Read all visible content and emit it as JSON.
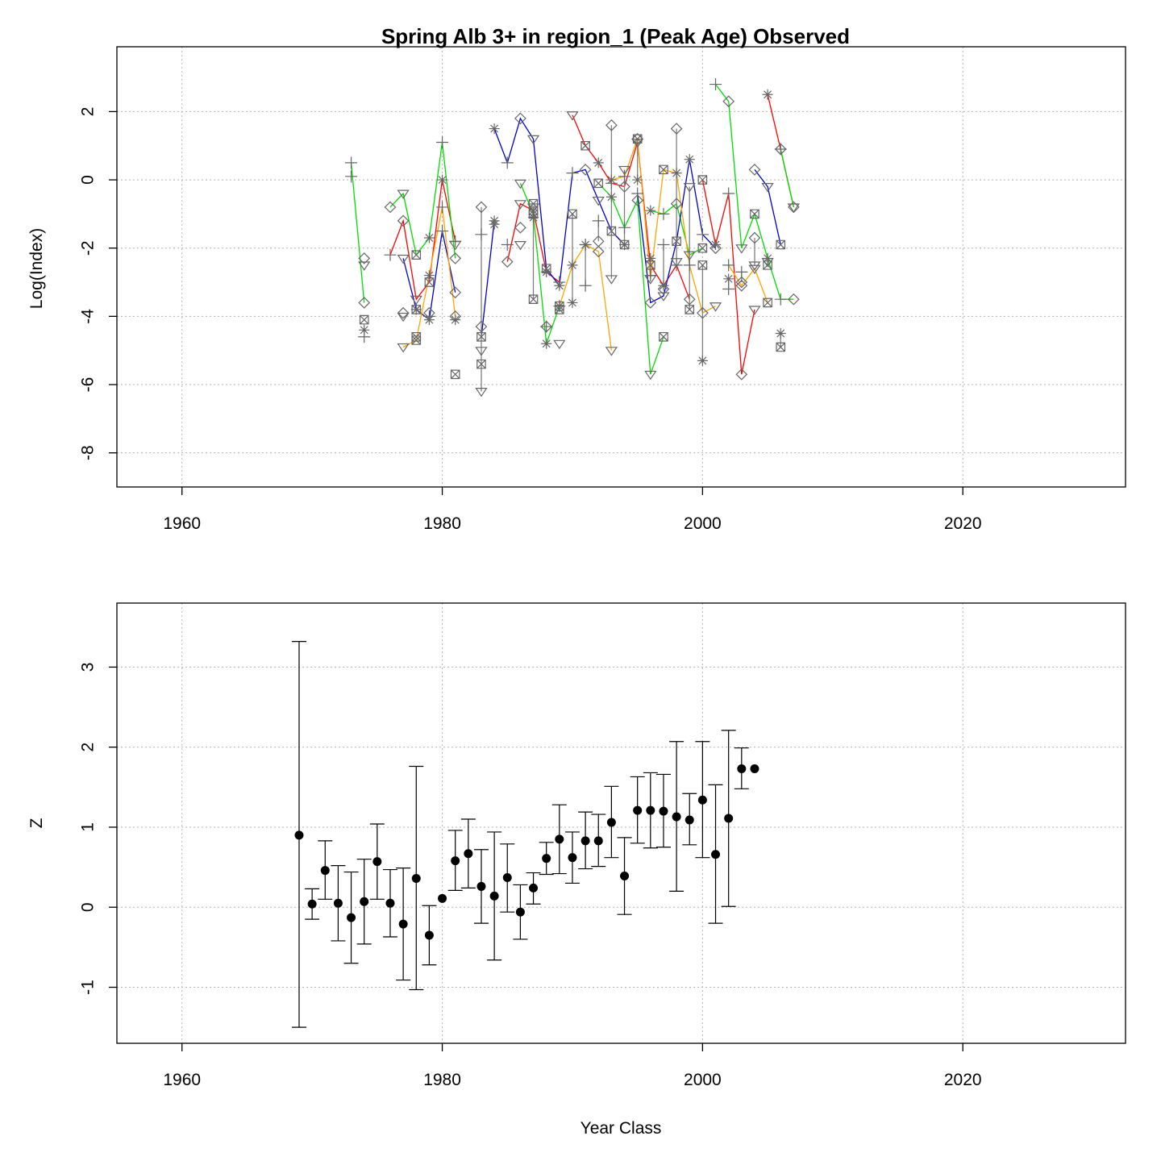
{
  "colors": {
    "lines": [
      "#ff0000",
      "#00dd00",
      "#0000cc",
      "#ffa500",
      "#808080"
    ],
    "marker": "#666666",
    "points": "#000000",
    "grid": "#b3b3b3"
  },
  "chart_data": [
    {
      "type": "line",
      "title": "Spring Alb 3+ in region_1 (Peak Age) Observed",
      "xlabel": "",
      "ylabel": "Log(Index)",
      "xlim": [
        1955,
        2032.5
      ],
      "ylim": [
        -9,
        3.9
      ],
      "xticks": [
        1960,
        1980,
        2000,
        2020
      ],
      "yticks": [
        -8,
        -6,
        -4,
        -2,
        0,
        2
      ],
      "grid": true,
      "series": [
        {
          "values": [
            [
              1976,
              -2.2
            ],
            [
              1977,
              -1.2
            ],
            [
              1978,
              -3.5
            ],
            [
              1979,
              -3.0
            ],
            [
              1980,
              0.0
            ],
            [
              1981,
              -1.8
            ]
          ]
        },
        {
          "values": [
            [
              1985,
              -2.4
            ],
            [
              1986,
              -0.7
            ],
            [
              1987,
              -0.9
            ],
            [
              1988,
              -2.7
            ],
            [
              1989,
              -3.0
            ]
          ]
        },
        {
          "values": [
            [
              1990,
              1.9
            ],
            [
              1991,
              1.0
            ],
            [
              1992,
              0.5
            ],
            [
              1993,
              -0.1
            ],
            [
              1994,
              -0.2
            ],
            [
              1995,
              1.1
            ],
            [
              1996,
              -2.5
            ],
            [
              1997,
              -3.1
            ],
            [
              1998,
              -2.5
            ],
            [
              1999,
              -3.5
            ]
          ]
        },
        {
          "values": [
            [
              2000,
              0.0
            ],
            [
              2001,
              -1.9
            ],
            [
              2002,
              -0.4
            ],
            [
              2003,
              -5.7
            ],
            [
              2004,
              -3.8
            ]
          ]
        },
        {
          "values": [
            [
              2005,
              2.5
            ],
            [
              2006,
              0.9
            ],
            [
              2007,
              -0.8
            ]
          ]
        },
        {
          "values": [
            [
              1973,
              0.5
            ],
            [
              1974,
              -3.6
            ]
          ]
        },
        {
          "values": [
            [
              1976,
              -0.8
            ],
            [
              1977,
              -0.4
            ],
            [
              1978,
              -2.2
            ],
            [
              1979,
              -1.7
            ],
            [
              1980,
              1.1
            ],
            [
              1981,
              -2.3
            ]
          ]
        },
        {
          "values": [
            [
              1986,
              -0.1
            ],
            [
              1987,
              -1.0
            ],
            [
              1988,
              -4.8
            ],
            [
              1989,
              -3.7
            ]
          ]
        },
        {
          "values": [
            [
              1992,
              -0.1
            ],
            [
              1993,
              -0.5
            ],
            [
              1994,
              -1.4
            ],
            [
              1995,
              -0.6
            ],
            [
              1996,
              -5.7
            ],
            [
              1997,
              -4.6
            ]
          ]
        },
        {
          "values": [
            [
              1996,
              -0.9
            ],
            [
              1997,
              -1.0
            ],
            [
              1998,
              -0.7
            ],
            [
              1999,
              -2.2
            ],
            [
              2000,
              -2.0
            ]
          ]
        },
        {
          "values": [
            [
              2001,
              2.8
            ],
            [
              2002,
              2.3
            ],
            [
              2003,
              -2.0
            ],
            [
              2004,
              -1.0
            ],
            [
              2005,
              -2.3
            ],
            [
              2006,
              -3.5
            ],
            [
              2007,
              -3.5
            ]
          ]
        },
        {
          "values": [
            [
              2006,
              0.9
            ],
            [
              2007,
              -0.8
            ]
          ]
        },
        {
          "values": [
            [
              1977,
              -2.3
            ],
            [
              1978,
              -3.8
            ],
            [
              1979,
              -4.1
            ],
            [
              1980,
              -1.5
            ],
            [
              1981,
              -3.3
            ]
          ]
        },
        {
          "values": [
            [
              1983,
              -4.6
            ],
            [
              1984,
              -1.2
            ]
          ]
        },
        {
          "values": [
            [
              1984,
              1.5
            ],
            [
              1985,
              0.5
            ],
            [
              1986,
              1.8
            ],
            [
              1987,
              1.2
            ],
            [
              1988,
              -2.6
            ],
            [
              1989,
              -3.1
            ],
            [
              1990,
              0.2
            ],
            [
              1991,
              0.3
            ],
            [
              1992,
              -0.6
            ],
            [
              1993,
              -1.5
            ],
            [
              1994,
              -1.9
            ]
          ]
        },
        {
          "values": [
            [
              1995,
              -0.4
            ],
            [
              1996,
              -3.6
            ],
            [
              1997,
              -3.4
            ],
            [
              1998,
              -1.8
            ],
            [
              1999,
              0.6
            ],
            [
              2000,
              -1.6
            ],
            [
              2001,
              -2.0
            ]
          ]
        },
        {
          "values": [
            [
              2004,
              0.3
            ],
            [
              2005,
              -0.2
            ],
            [
              2006,
              -1.9
            ]
          ]
        },
        {
          "values": [
            [
              1977,
              -4.9
            ],
            [
              1978,
              -4.7
            ],
            [
              1979,
              -2.8
            ],
            [
              1980,
              -0.8
            ],
            [
              1981,
              -4.0
            ]
          ]
        },
        {
          "values": [
            [
              1989,
              -3.7
            ],
            [
              1990,
              -2.5
            ],
            [
              1991,
              -1.9
            ],
            [
              1992,
              -2.1
            ],
            [
              1993,
              -5.0
            ]
          ]
        },
        {
          "values": [
            [
              1993,
              0.0
            ],
            [
              1994,
              0.1
            ],
            [
              1995,
              1.2
            ],
            [
              1996,
              -2.9
            ],
            [
              1997,
              0.3
            ],
            [
              1998,
              0.2
            ],
            [
              1999,
              -2.5
            ],
            [
              2000,
              -3.9
            ],
            [
              2001,
              -3.7
            ]
          ]
        },
        {
          "values": [
            [
              2002,
              -2.5
            ],
            [
              2003,
              -3.1
            ],
            [
              2004,
              -2.6
            ],
            [
              2005,
              -3.6
            ]
          ]
        },
        {
          "values": [
            [
              1983,
              -0.8
            ],
            [
              1983,
              -6.2
            ]
          ]
        },
        {
          "values": [
            [
              1987,
              -0.8
            ],
            [
              1987,
              -3.5
            ]
          ]
        },
        {
          "values": [
            [
              1990,
              -1.0
            ],
            [
              1990,
              -3.6
            ]
          ]
        },
        {
          "values": [
            [
              1991,
              -1.9
            ],
            [
              1991,
              -3.1
            ]
          ]
        },
        {
          "values": [
            [
              1992,
              -1.2
            ],
            [
              1992,
              -1.8
            ]
          ]
        },
        {
          "values": [
            [
              1993,
              1.6
            ],
            [
              1993,
              -2.9
            ]
          ]
        },
        {
          "values": [
            [
              1994,
              0.3
            ],
            [
              1994,
              -1.9
            ]
          ]
        },
        {
          "values": [
            [
              1995,
              1.2
            ],
            [
              1995,
              0.0
            ]
          ]
        },
        {
          "values": [
            [
              1996,
              -2.3
            ],
            [
              1996,
              -2.8
            ]
          ]
        },
        {
          "values": [
            [
              1997,
              -1.9
            ],
            [
              1997,
              -3.2
            ]
          ]
        },
        {
          "values": [
            [
              1998,
              1.5
            ],
            [
              1998,
              -2.4
            ]
          ]
        },
        {
          "values": [
            [
              1999,
              -0.2
            ],
            [
              1999,
              -3.8
            ]
          ]
        },
        {
          "values": [
            [
              2000,
              -2.5
            ],
            [
              2000,
              -5.3
            ]
          ]
        },
        {
          "values": [
            [
              2002,
              -2.9
            ],
            [
              2002,
              -3.2
            ]
          ]
        },
        {
          "values": [
            [
              2003,
              -2.7
            ],
            [
              2003,
              -3.0
            ]
          ]
        },
        {
          "values": [
            [
              2004,
              -1.7
            ],
            [
              2004,
              -2.5
            ]
          ]
        },
        {
          "values": [
            [
              2005,
              -2.4
            ],
            [
              2005,
              -2.5
            ]
          ]
        },
        {
          "values": [
            [
              2006,
              -4.9
            ],
            [
              2006,
              -4.5
            ]
          ]
        }
      ],
      "points": [
        [
          1973,
          0.1
        ],
        [
          1974,
          -2.3
        ],
        [
          1974,
          -2.5
        ],
        [
          1974,
          -4.1
        ],
        [
          1974,
          -4.4
        ],
        [
          1974,
          -4.6
        ],
        [
          1977,
          -3.9
        ],
        [
          1977,
          -4.0
        ],
        [
          1978,
          -4.6
        ],
        [
          1978,
          -3.8
        ],
        [
          1979,
          -4.0
        ],
        [
          1979,
          -3.9
        ],
        [
          1981,
          -1.9
        ],
        [
          1981,
          -5.7
        ],
        [
          1981,
          -4.1
        ],
        [
          1983,
          -1.6
        ],
        [
          1983,
          -4.3
        ],
        [
          1983,
          -5.0
        ],
        [
          1983,
          -5.4
        ],
        [
          1984,
          -1.3
        ],
        [
          1985,
          -1.9
        ],
        [
          1986,
          -1.4
        ],
        [
          1986,
          -1.9
        ],
        [
          1987,
          -0.7
        ],
        [
          1987,
          -1.1
        ],
        [
          1988,
          -4.3
        ],
        [
          1988,
          -4.3
        ],
        [
          1989,
          -4.8
        ],
        [
          1989,
          -3.8
        ]
      ]
    },
    {
      "type": "scatter",
      "title": "",
      "xlabel": "Year Class",
      "ylabel": "Z",
      "xlim": [
        1955,
        2032.5
      ],
      "ylim": [
        -1.7,
        3.8
      ],
      "xticks": [
        1960,
        1980,
        2000,
        2020
      ],
      "yticks": [
        -1,
        0,
        1,
        2,
        3
      ],
      "grid": true,
      "points": [
        {
          "x": 1969,
          "y": 0.9,
          "lo": -1.5,
          "hi": 3.32
        },
        {
          "x": 1970,
          "y": 0.04,
          "lo": -0.15,
          "hi": 0.23
        },
        {
          "x": 1971,
          "y": 0.46,
          "lo": 0.1,
          "hi": 0.83
        },
        {
          "x": 1972,
          "y": 0.05,
          "lo": -0.42,
          "hi": 0.52
        },
        {
          "x": 1973,
          "y": -0.13,
          "lo": -0.7,
          "hi": 0.44
        },
        {
          "x": 1974,
          "y": 0.07,
          "lo": -0.46,
          "hi": 0.6
        },
        {
          "x": 1975,
          "y": 0.57,
          "lo": 0.1,
          "hi": 1.04
        },
        {
          "x": 1976,
          "y": 0.05,
          "lo": -0.37,
          "hi": 0.47
        },
        {
          "x": 1977,
          "y": -0.21,
          "lo": -0.91,
          "hi": 0.49
        },
        {
          "x": 1978,
          "y": 0.36,
          "lo": -1.03,
          "hi": 1.76
        },
        {
          "x": 1979,
          "y": -0.35,
          "lo": -0.72,
          "hi": 0.02
        },
        {
          "x": 1980,
          "y": 0.11,
          "lo": 0.11,
          "hi": 0.11
        },
        {
          "x": 1981,
          "y": 0.58,
          "lo": 0.21,
          "hi": 0.96
        },
        {
          "x": 1982,
          "y": 0.67,
          "lo": 0.24,
          "hi": 1.1
        },
        {
          "x": 1983,
          "y": 0.26,
          "lo": -0.2,
          "hi": 0.72
        },
        {
          "x": 1984,
          "y": 0.14,
          "lo": -0.66,
          "hi": 0.94
        },
        {
          "x": 1985,
          "y": 0.37,
          "lo": -0.06,
          "hi": 0.79
        },
        {
          "x": 1986,
          "y": -0.06,
          "lo": -0.4,
          "hi": 0.28
        },
        {
          "x": 1987,
          "y": 0.24,
          "lo": 0.04,
          "hi": 0.43
        },
        {
          "x": 1988,
          "y": 0.61,
          "lo": 0.41,
          "hi": 0.81
        },
        {
          "x": 1989,
          "y": 0.85,
          "lo": 0.42,
          "hi": 1.28
        },
        {
          "x": 1990,
          "y": 0.62,
          "lo": 0.3,
          "hi": 0.94
        },
        {
          "x": 1991,
          "y": 0.83,
          "lo": 0.48,
          "hi": 1.19
        },
        {
          "x": 1992,
          "y": 0.83,
          "lo": 0.51,
          "hi": 1.16
        },
        {
          "x": 1993,
          "y": 1.06,
          "lo": 0.62,
          "hi": 1.51
        },
        {
          "x": 1994,
          "y": 0.39,
          "lo": -0.09,
          "hi": 0.87
        },
        {
          "x": 1995,
          "y": 1.21,
          "lo": 0.8,
          "hi": 1.63
        },
        {
          "x": 1996,
          "y": 1.21,
          "lo": 0.74,
          "hi": 1.68
        },
        {
          "x": 1997,
          "y": 1.2,
          "lo": 0.75,
          "hi": 1.66
        },
        {
          "x": 1998,
          "y": 1.13,
          "lo": 0.2,
          "hi": 2.07
        },
        {
          "x": 1999,
          "y": 1.09,
          "lo": 0.78,
          "hi": 1.42
        },
        {
          "x": 2000,
          "y": 1.34,
          "lo": 0.62,
          "hi": 2.07
        },
        {
          "x": 2001,
          "y": 0.66,
          "lo": -0.2,
          "hi": 1.53
        },
        {
          "x": 2002,
          "y": 1.11,
          "lo": 0.01,
          "hi": 2.21
        },
        {
          "x": 2003,
          "y": 1.73,
          "lo": 1.48,
          "hi": 1.99
        },
        {
          "x": 2004,
          "y": 1.73,
          "lo": 1.73,
          "hi": 1.73
        }
      ]
    }
  ]
}
